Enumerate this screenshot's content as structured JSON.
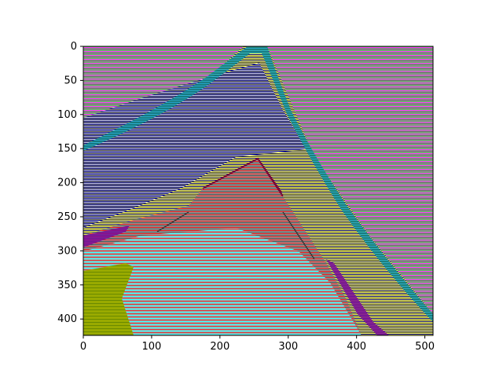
{
  "figure": {
    "type": "image-plot",
    "background": "#ffffff",
    "axes_color": "#000000"
  },
  "image": {
    "description_colors": {
      "magenta": "#ff33ff",
      "grey": "#909090",
      "yellow": "#ffff55",
      "navy": "#0a0a8a",
      "red": "#e01010",
      "cyan": "#33ffff",
      "green": "#22ee22",
      "teal": "#108080",
      "purple": "#7a0a9a",
      "olive": "#99aa00",
      "light_grey": "#a8a8a8"
    },
    "x_range": [
      0,
      512
    ],
    "y_range": [
      0,
      424
    ]
  },
  "axes": {
    "x_ticks": [
      {
        "value": 0,
        "label": "0"
      },
      {
        "value": 100,
        "label": "100"
      },
      {
        "value": 200,
        "label": "200"
      },
      {
        "value": 300,
        "label": "300"
      },
      {
        "value": 400,
        "label": "400"
      },
      {
        "value": 500,
        "label": "500"
      }
    ],
    "y_ticks": [
      {
        "value": 0,
        "label": "0"
      },
      {
        "value": 50,
        "label": "50"
      },
      {
        "value": 100,
        "label": "100"
      },
      {
        "value": 150,
        "label": "150"
      },
      {
        "value": 200,
        "label": "200"
      },
      {
        "value": 250,
        "label": "250"
      },
      {
        "value": 300,
        "label": "300"
      },
      {
        "value": 350,
        "label": "350"
      },
      {
        "value": 400,
        "label": "400"
      }
    ]
  }
}
